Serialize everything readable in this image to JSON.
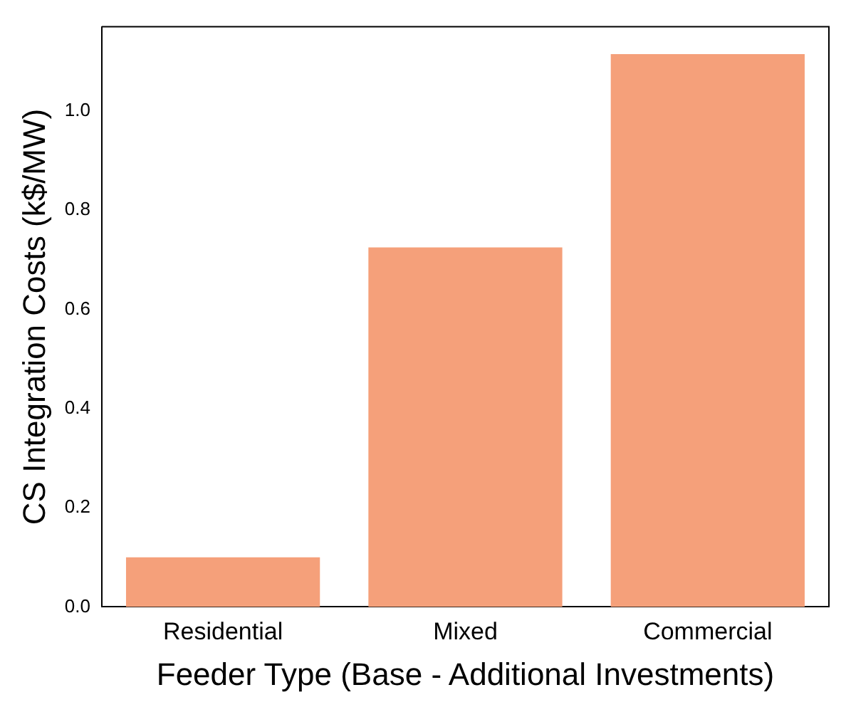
{
  "chart_data": {
    "type": "bar",
    "xlabel": "Feeder Type (Base - Additional Investments)",
    "ylabel": "CS Integration Costs (k$/MW)",
    "categories": [
      "Residential",
      "Mixed",
      "Commercial"
    ],
    "values": [
      0.1,
      0.725,
      1.115
    ],
    "color": "#f5a07a",
    "ylim": [
      0,
      1.17
    ],
    "yticks": [
      {
        "value": 0,
        "label": "0.0"
      },
      0.2,
      0.4,
      0.6,
      0.8,
      {
        "value": 1,
        "label": "1.0"
      }
    ],
    "grid": false,
    "legend": false
  }
}
